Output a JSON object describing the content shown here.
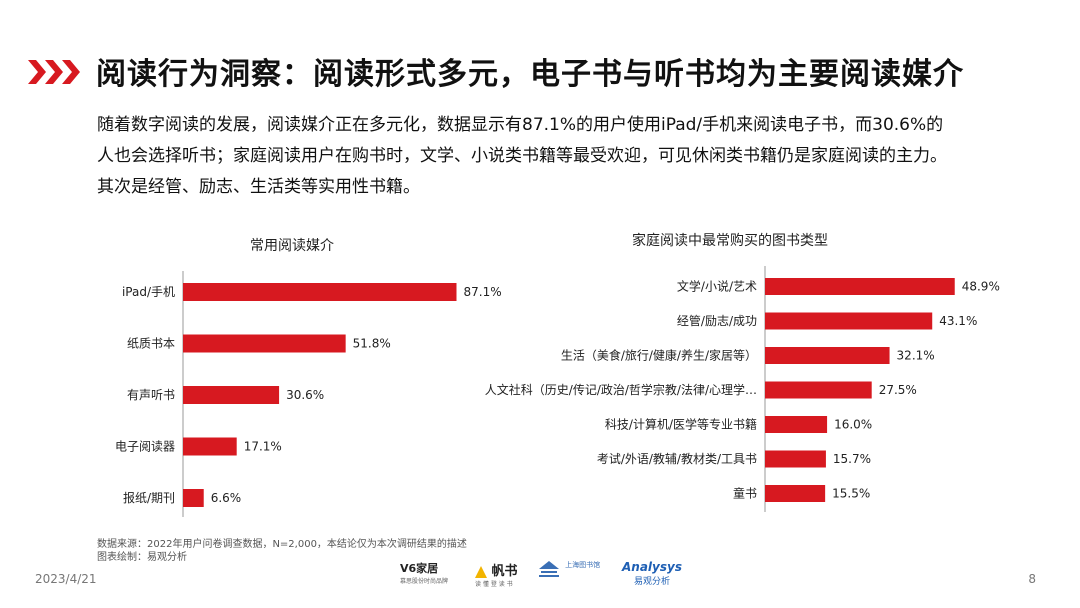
{
  "header": {
    "title": "阅读行为洞察：阅读形式多元，电子书与听书均为主要阅读媒介"
  },
  "intro": {
    "lines": [
      "随着数字阅读的发展，阅读媒介正在多元化，数据显示有87.1%的用户使用iPad/手机来阅读电子书，而30.6%的",
      "人也会选择听书；家庭阅读用户在购书时，文学、小说类书籍等最受欢迎，可见休闲类书籍仍是家庭阅读的主力。",
      "其次是经管、励志、生活类等实用性书籍。"
    ]
  },
  "colors": {
    "accent": "#d71920",
    "bar": "#d71920",
    "axis": "#999999"
  },
  "chart_data": [
    {
      "type": "bar",
      "orientation": "horizontal",
      "title": "常用阅读媒介",
      "categories": [
        "iPad/手机",
        "纸质书本",
        "有声听书",
        "电子阅读器",
        "报纸/期刊"
      ],
      "values": [
        87.1,
        51.8,
        30.6,
        17.1,
        6.6
      ],
      "labels": [
        "87.1%",
        "51.8%",
        "30.6%",
        "17.1%",
        "6.6%"
      ],
      "unit": "%",
      "xlim": [
        0,
        100
      ],
      "grid": false,
      "legend": "none"
    },
    {
      "type": "bar",
      "orientation": "horizontal",
      "title": "家庭阅读中最常购买的图书类型",
      "categories": [
        "文学/小说/艺术",
        "经管/励志/成功",
        "生活（美食/旅行/健康/养生/家居等）",
        "人文社科（历史/传记/政治/哲学宗教/法律/心理学…",
        "科技/计算机/医学等专业书籍",
        "考试/外语/教辅/教材类/工具书",
        "童书"
      ],
      "values": [
        48.9,
        43.1,
        32.1,
        27.5,
        16.0,
        15.7,
        15.5
      ],
      "labels": [
        "48.9%",
        "43.1%",
        "32.1%",
        "27.5%",
        "16.0%",
        "15.7%",
        "15.5%"
      ],
      "unit": "%",
      "xlim": [
        0,
        55
      ],
      "grid": false,
      "legend": "none"
    }
  ],
  "footer": {
    "source": "数据来源：2022年用户问卷调查数据，N=2,000，本结论仅为本次调研结果的描述",
    "drawn_by": "图表绘制：易观分析",
    "date": "2023/4/21",
    "page": "8",
    "logos": [
      {
        "name": "V6家居",
        "sub": "慕思股份时尚品牌"
      },
      {
        "name": "帆书",
        "sub": "读 懂 登 读 书"
      },
      {
        "name": "上海图书馆",
        "sub": ""
      },
      {
        "name": "Analysys",
        "sub": "易观分析"
      }
    ]
  }
}
